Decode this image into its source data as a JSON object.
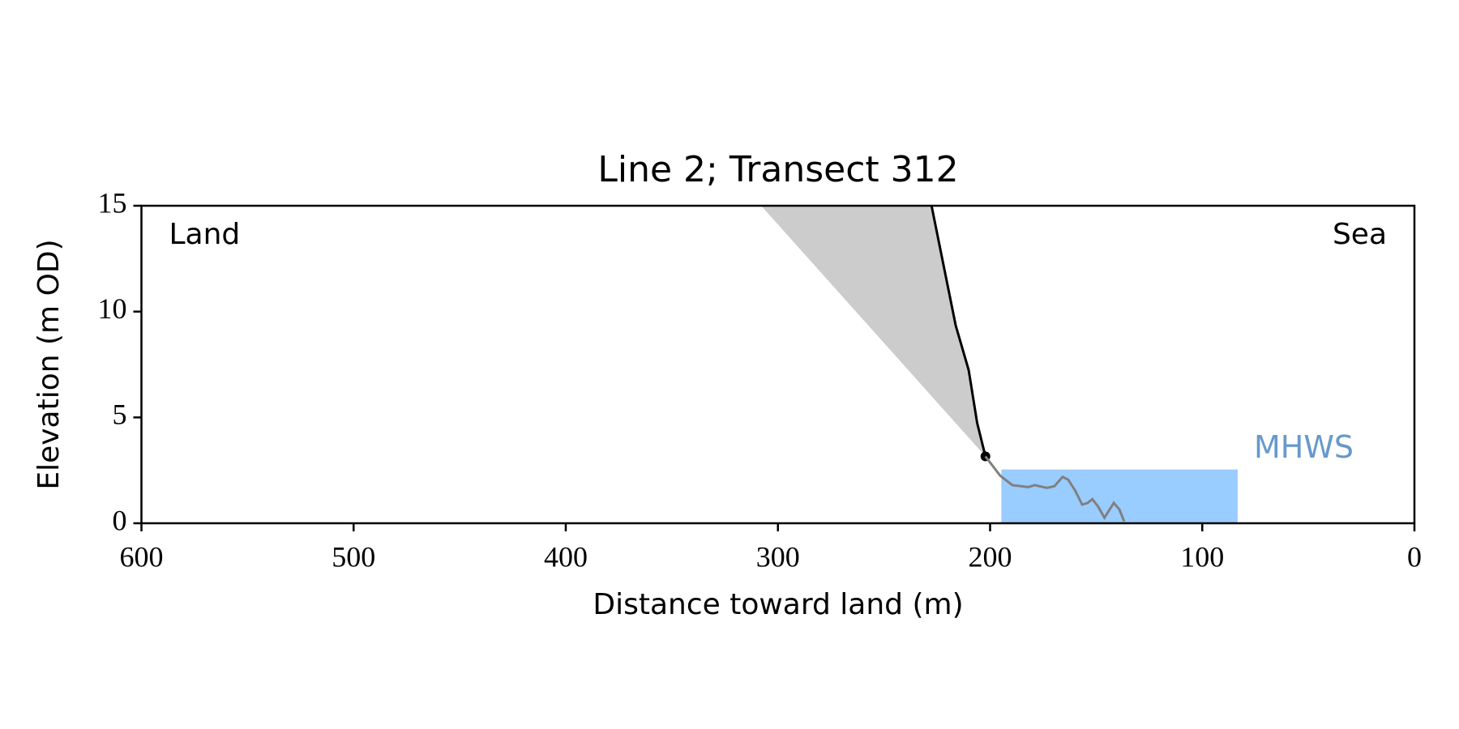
{
  "chart_data": {
    "type": "line",
    "title": "Line 2; Transect 312",
    "xlabel": "Distance toward land (m)",
    "ylabel": "Elevation (m OD)",
    "xlim": [
      600,
      0
    ],
    "xticks": [
      600,
      500,
      400,
      300,
      200,
      100,
      0
    ],
    "ylim": [
      0,
      15
    ],
    "yticks": [
      0,
      5,
      10,
      15
    ],
    "annotations": [
      "Land",
      "Sea"
    ],
    "series": [
      {
        "kind": "area",
        "color": "#cccccc",
        "x": [
          307.9,
          227.6,
          216.2,
          210.1,
          206.1,
          202.2
        ],
        "values": [
          15,
          15,
          9.34,
          7.24,
          4.74,
          3.16
        ]
      },
      {
        "kind": "line",
        "color": "#000000",
        "marker_end": true,
        "x": [
          227.6,
          216.2,
          210.1,
          206.1,
          202.2
        ],
        "values": [
          15,
          9.34,
          7.24,
          4.74,
          3.16
        ]
      },
      {
        "kind": "line",
        "color": "#808080",
        "x": [
          202.2,
          195.2,
          189.5,
          182,
          179,
          173.2,
          169.7,
          165.8,
          163.2,
          160.1,
          156.6,
          154,
          151.8,
          149.1,
          146.1,
          141.7,
          139.1,
          136.8
        ],
        "values": [
          3.16,
          2.24,
          1.8,
          1.71,
          1.8,
          1.67,
          1.75,
          2.19,
          2.06,
          1.58,
          0.88,
          0.96,
          1.14,
          0.79,
          0.26,
          0.96,
          0.66,
          0.09
        ]
      }
    ],
    "mhws": {
      "label": "MHWS",
      "value": 2.54,
      "x": [
        194.7,
        83.3
      ],
      "color": "#99ccff",
      "label_color": "#6699cc"
    }
  }
}
